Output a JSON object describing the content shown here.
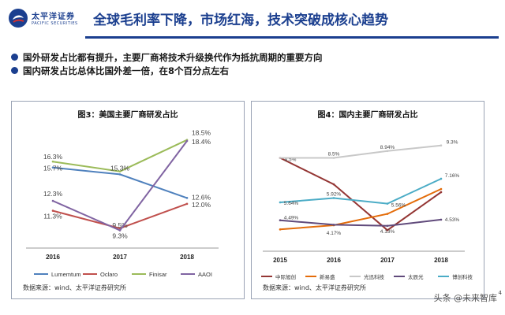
{
  "header": {
    "logo_cn": "太平洋证券",
    "logo_en": "PACIFIC SECURITIES",
    "title": "全球毛利率下降，市场红海，技术突破成核心趋势"
  },
  "bullets": [
    "国外研发占比都有提升，主要厂商将技术升级换代作为抵抗周期的重要方向",
    "国内研发占比总体比国外差一倍，在8个百分点左右"
  ],
  "colors": {
    "brand": "#1b3f8f",
    "panel_border": "#9aa3b5"
  },
  "chart_data": [
    {
      "type": "line",
      "title": "图3：美国主要厂商研发占比",
      "categories": [
        "2016",
        "2017",
        "2018"
      ],
      "series": [
        {
          "name": "Lumemtum",
          "color": "#4f81bd",
          "values": [
            15.7,
            15.0,
            12.6
          ],
          "labels": [
            "15.7%",
            "",
            "12.6%"
          ]
        },
        {
          "name": "Oclaro",
          "color": "#c0504d",
          "values": [
            11.3,
            9.5,
            12.0
          ],
          "labels": [
            "11.3%",
            "9.5%",
            "12.0%"
          ]
        },
        {
          "name": "Finisar",
          "color": "#9bbb59",
          "values": [
            16.3,
            15.3,
            18.5
          ],
          "labels": [
            "16.3%",
            "15.3%",
            "18.5%"
          ]
        },
        {
          "name": "AAOI",
          "color": "#8064a2",
          "values": [
            12.3,
            9.3,
            18.4
          ],
          "labels": [
            "12.3%",
            "9.3%",
            "18.4%"
          ]
        }
      ],
      "ylim": [
        7.5,
        20
      ],
      "legend": "bottom",
      "source": "数据来源：wind、太平洋证券研究所"
    },
    {
      "type": "line",
      "title": "图4：国内主要厂商研发占比",
      "categories": [
        "2015",
        "2016",
        "2017",
        "2018"
      ],
      "series": [
        {
          "name": "中际旭创",
          "color": "#943634",
          "values": [
            8.5,
            6.8,
            3.85,
            6.3
          ],
          "labels": [
            "8.5%",
            "",
            "",
            ""
          ]
        },
        {
          "name": "新易盛",
          "color": "#e46c0a",
          "values": [
            3.9,
            4.17,
            4.9,
            6.5
          ],
          "labels": [
            "",
            "4.17%",
            "",
            ""
          ]
        },
        {
          "name": "光迅科技",
          "color": "#c8c8c8",
          "values": [
            8.5,
            8.5,
            8.94,
            9.3
          ],
          "labels": [
            "",
            "8.5%",
            "8.94%",
            "9.3%"
          ]
        },
        {
          "name": "太辰光",
          "color": "#604a7b",
          "values": [
            4.49,
            4.2,
            4.13,
            4.53
          ],
          "labels": [
            "4.49%",
            "",
            "4.13%",
            "4.53%"
          ]
        },
        {
          "name": "博创科技",
          "color": "#4bacc6",
          "values": [
            5.64,
            5.92,
            5.56,
            7.16
          ],
          "labels": [
            "5.64%",
            "5.92%",
            "5.56%",
            "7.16%"
          ]
        }
      ],
      "ylim": [
        2.5,
        10.5
      ],
      "legend": "bottom",
      "source": "数据来源：wind、太平洋证券研究所"
    }
  ],
  "watermark": "头条 @未来智库",
  "page_number": "4"
}
